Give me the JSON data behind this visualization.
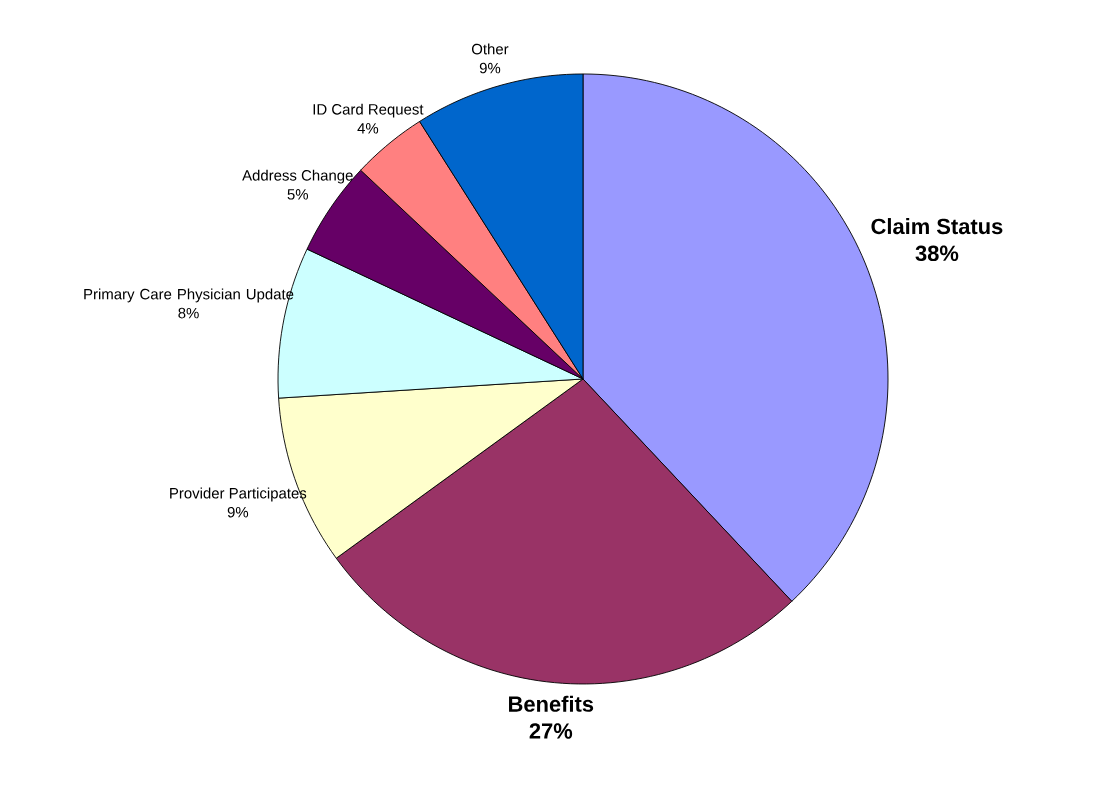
{
  "chart_data": {
    "type": "pie",
    "categories": [
      "Claim Status",
      "Benefits",
      "Provider Participates",
      "Primary Care Physician Update",
      "Address Change",
      "ID Card Request",
      "Other"
    ],
    "values": [
      38,
      27,
      9,
      8,
      5,
      4,
      9
    ],
    "value_labels": [
      "38%",
      "27%",
      "9%",
      "8%",
      "5%",
      "4%",
      "9%"
    ],
    "colors": [
      "#9999ff",
      "#993366",
      "#ffffcc",
      "#ccffff",
      "#660066",
      "#ff8080",
      "#0066cc"
    ]
  }
}
